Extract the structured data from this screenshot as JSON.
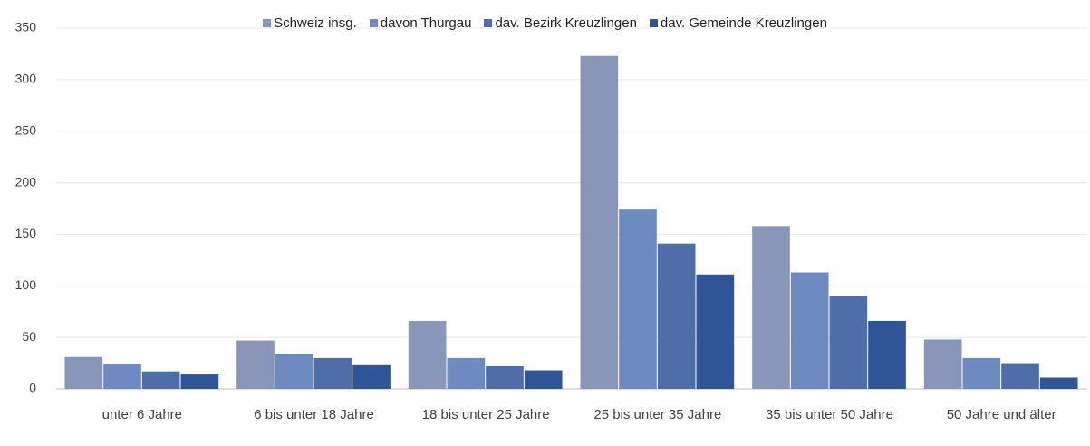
{
  "chart_data": {
    "type": "bar",
    "categories": [
      "unter 6 Jahre",
      "6 bis unter 18 Jahre",
      "18 bis unter 25 Jahre",
      "25 bis unter 35 Jahre",
      "35 bis unter 50 Jahre",
      "50 Jahre und älter"
    ],
    "series": [
      {
        "name": "Schweiz insg.",
        "color": "#8995b9",
        "values": [
          31,
          47,
          66,
          323,
          158,
          48
        ]
      },
      {
        "name": "davon Thurgau",
        "color": "#6d8bc0",
        "values": [
          24,
          34,
          30,
          174,
          113,
          30
        ]
      },
      {
        "name": "dav. Bezirk Kreuzlingen",
        "color": "#4f6ea9",
        "values": [
          17,
          30,
          22,
          141,
          90,
          25
        ]
      },
      {
        "name": "dav. Gemeinde Kreuzlingen",
        "color": "#2f5597",
        "values": [
          14,
          23,
          18,
          111,
          66,
          11
        ]
      }
    ],
    "ylim": [
      0,
      350
    ],
    "yticks": [
      0,
      50,
      100,
      150,
      200,
      250,
      300,
      350
    ],
    "grid": true,
    "legend": "top"
  }
}
